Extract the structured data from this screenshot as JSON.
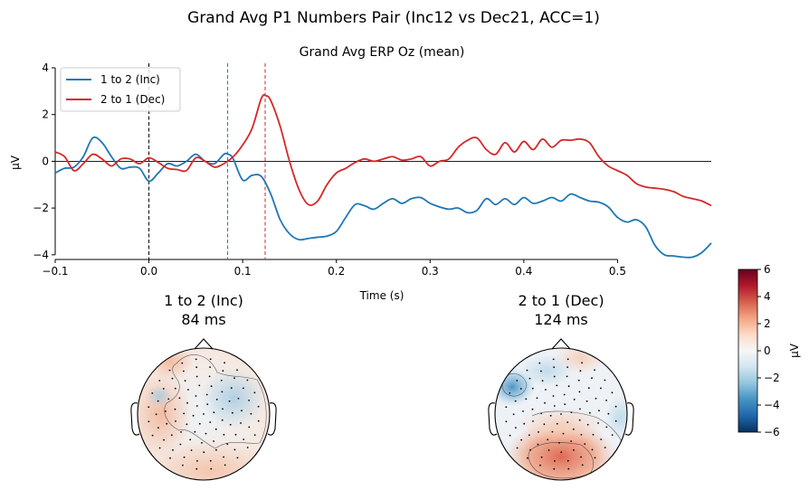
{
  "figure": {
    "suptitle": "Grand Avg P1 Numbers Pair (Inc12 vs Dec21, ACC=1)"
  },
  "chart_data": [
    {
      "type": "line",
      "title": "Grand Avg ERP Oz (mean)",
      "xlabel": "Time (s)",
      "ylabel": "µV",
      "xlim": [
        -0.1,
        0.6
      ],
      "ylim": [
        -4.2,
        4.0
      ],
      "xticks": [
        -0.1,
        0.0,
        0.1,
        0.2,
        0.3,
        0.4,
        0.5
      ],
      "xtick_labels": [
        "−0.1",
        "0.0",
        "0.1",
        "0.2",
        "0.3",
        "0.4",
        "0.5"
      ],
      "yticks": [
        -4,
        -2,
        0,
        2,
        4
      ],
      "ytick_labels": [
        "−4",
        "−2",
        "0",
        "2",
        "4"
      ],
      "grid": false,
      "legend_position": "top-left",
      "zero_line": true,
      "vlines": [
        {
          "x": 0.0,
          "color": "#000000",
          "style": "dashed"
        },
        {
          "x": 0.084,
          "color": "#1f77b4",
          "style": "dashed"
        },
        {
          "x": 0.124,
          "color": "#d62728",
          "style": "dashed"
        }
      ],
      "series": [
        {
          "name": "1 to 2 (Inc)",
          "color": "#1f77b4",
          "points": [
            [
              -0.1,
              -0.5
            ],
            [
              -0.09,
              -0.3
            ],
            [
              -0.08,
              -0.25
            ],
            [
              -0.07,
              0.2
            ],
            [
              -0.06,
              1.0
            ],
            [
              -0.05,
              0.8
            ],
            [
              -0.04,
              0.2
            ],
            [
              -0.03,
              -0.3
            ],
            [
              -0.02,
              -0.25
            ],
            [
              -0.01,
              -0.3
            ],
            [
              0.0,
              -0.85
            ],
            [
              0.01,
              -0.5
            ],
            [
              0.02,
              -0.1
            ],
            [
              0.03,
              -0.2
            ],
            [
              0.04,
              0.0
            ],
            [
              0.05,
              0.3
            ],
            [
              0.06,
              0.0
            ],
            [
              0.07,
              -0.1
            ],
            [
              0.08,
              0.3
            ],
            [
              0.085,
              0.3
            ],
            [
              0.09,
              0.1
            ],
            [
              0.1,
              -0.8
            ],
            [
              0.11,
              -0.6
            ],
            [
              0.12,
              -0.65
            ],
            [
              0.13,
              -1.4
            ],
            [
              0.14,
              -2.5
            ],
            [
              0.15,
              -3.1
            ],
            [
              0.16,
              -3.35
            ],
            [
              0.17,
              -3.3
            ],
            [
              0.18,
              -3.25
            ],
            [
              0.19,
              -3.2
            ],
            [
              0.2,
              -3.0
            ],
            [
              0.21,
              -2.4
            ],
            [
              0.22,
              -1.85
            ],
            [
              0.23,
              -1.9
            ],
            [
              0.24,
              -2.05
            ],
            [
              0.25,
              -1.8
            ],
            [
              0.26,
              -1.6
            ],
            [
              0.27,
              -1.8
            ],
            [
              0.28,
              -1.6
            ],
            [
              0.29,
              -1.55
            ],
            [
              0.3,
              -1.8
            ],
            [
              0.31,
              -1.95
            ],
            [
              0.32,
              -2.05
            ],
            [
              0.33,
              -2.0
            ],
            [
              0.34,
              -2.2
            ],
            [
              0.35,
              -2.1
            ],
            [
              0.36,
              -1.6
            ],
            [
              0.37,
              -1.85
            ],
            [
              0.38,
              -1.6
            ],
            [
              0.39,
              -1.85
            ],
            [
              0.4,
              -1.55
            ],
            [
              0.41,
              -1.8
            ],
            [
              0.42,
              -1.7
            ],
            [
              0.43,
              -1.55
            ],
            [
              0.44,
              -1.7
            ],
            [
              0.45,
              -1.4
            ],
            [
              0.46,
              -1.55
            ],
            [
              0.47,
              -1.7
            ],
            [
              0.48,
              -1.75
            ],
            [
              0.49,
              -1.95
            ],
            [
              0.5,
              -2.4
            ],
            [
              0.51,
              -2.6
            ],
            [
              0.52,
              -2.5
            ],
            [
              0.53,
              -2.8
            ],
            [
              0.54,
              -3.6
            ],
            [
              0.55,
              -4.0
            ],
            [
              0.56,
              -4.05
            ],
            [
              0.57,
              -4.1
            ],
            [
              0.58,
              -4.1
            ],
            [
              0.59,
              -3.9
            ],
            [
              0.6,
              -3.5
            ]
          ]
        },
        {
          "name": "2 to 1 (Dec)",
          "color": "#d62728",
          "points": [
            [
              -0.1,
              0.4
            ],
            [
              -0.09,
              0.2
            ],
            [
              -0.08,
              -0.4
            ],
            [
              -0.07,
              -0.1
            ],
            [
              -0.06,
              0.3
            ],
            [
              -0.05,
              0.1
            ],
            [
              -0.04,
              -0.2
            ],
            [
              -0.03,
              0.1
            ],
            [
              -0.02,
              0.1
            ],
            [
              -0.01,
              -0.1
            ],
            [
              0.0,
              0.15
            ],
            [
              0.01,
              -0.05
            ],
            [
              0.02,
              -0.3
            ],
            [
              0.03,
              -0.35
            ],
            [
              0.04,
              -0.4
            ],
            [
              0.05,
              0.15
            ],
            [
              0.06,
              0.0
            ],
            [
              0.07,
              -0.25
            ],
            [
              0.08,
              -0.1
            ],
            [
              0.09,
              0.2
            ],
            [
              0.1,
              0.7
            ],
            [
              0.11,
              1.4
            ],
            [
              0.12,
              2.7
            ],
            [
              0.125,
              2.8
            ],
            [
              0.13,
              2.6
            ],
            [
              0.14,
              1.5
            ],
            [
              0.15,
              0.0
            ],
            [
              0.16,
              -1.2
            ],
            [
              0.17,
              -1.85
            ],
            [
              0.18,
              -1.7
            ],
            [
              0.19,
              -1.0
            ],
            [
              0.2,
              -0.5
            ],
            [
              0.21,
              -0.3
            ],
            [
              0.22,
              -0.05
            ],
            [
              0.23,
              0.1
            ],
            [
              0.24,
              0.0
            ],
            [
              0.25,
              0.1
            ],
            [
              0.26,
              0.2
            ],
            [
              0.27,
              0.05
            ],
            [
              0.28,
              0.1
            ],
            [
              0.29,
              0.2
            ],
            [
              0.3,
              -0.2
            ],
            [
              0.31,
              0.0
            ],
            [
              0.32,
              0.1
            ],
            [
              0.33,
              0.6
            ],
            [
              0.34,
              0.9
            ],
            [
              0.35,
              1.0
            ],
            [
              0.36,
              0.5
            ],
            [
              0.37,
              0.3
            ],
            [
              0.38,
              0.8
            ],
            [
              0.39,
              0.4
            ],
            [
              0.4,
              0.85
            ],
            [
              0.41,
              0.5
            ],
            [
              0.42,
              0.95
            ],
            [
              0.43,
              0.6
            ],
            [
              0.44,
              0.9
            ],
            [
              0.45,
              0.9
            ],
            [
              0.46,
              0.95
            ],
            [
              0.47,
              0.8
            ],
            [
              0.48,
              0.2
            ],
            [
              0.49,
              -0.2
            ],
            [
              0.5,
              -0.4
            ],
            [
              0.51,
              -0.6
            ],
            [
              0.52,
              -0.95
            ],
            [
              0.53,
              -1.1
            ],
            [
              0.54,
              -1.15
            ],
            [
              0.55,
              -1.2
            ],
            [
              0.56,
              -1.3
            ],
            [
              0.57,
              -1.5
            ],
            [
              0.58,
              -1.6
            ],
            [
              0.59,
              -1.7
            ],
            [
              0.6,
              -1.9
            ]
          ]
        }
      ]
    },
    {
      "type": "heatmap",
      "subtype": "topomap",
      "title_line1": "1 to 2 (Inc)",
      "title_line2": "84 ms",
      "title_color": "#1f77b4"
    },
    {
      "type": "heatmap",
      "subtype": "topomap",
      "title_line1": "2 to 1 (Dec)",
      "title_line2": "124 ms",
      "title_color": "#d62728"
    },
    {
      "type": "colorbar",
      "label": "µV",
      "range": [
        -6,
        6
      ],
      "ticks": [
        -6,
        -4,
        -2,
        0,
        2,
        4,
        6
      ],
      "tick_labels": [
        "−6",
        "−4",
        "−2",
        "0",
        "2",
        "4",
        "6"
      ],
      "colormap": "RdBu_r"
    }
  ]
}
